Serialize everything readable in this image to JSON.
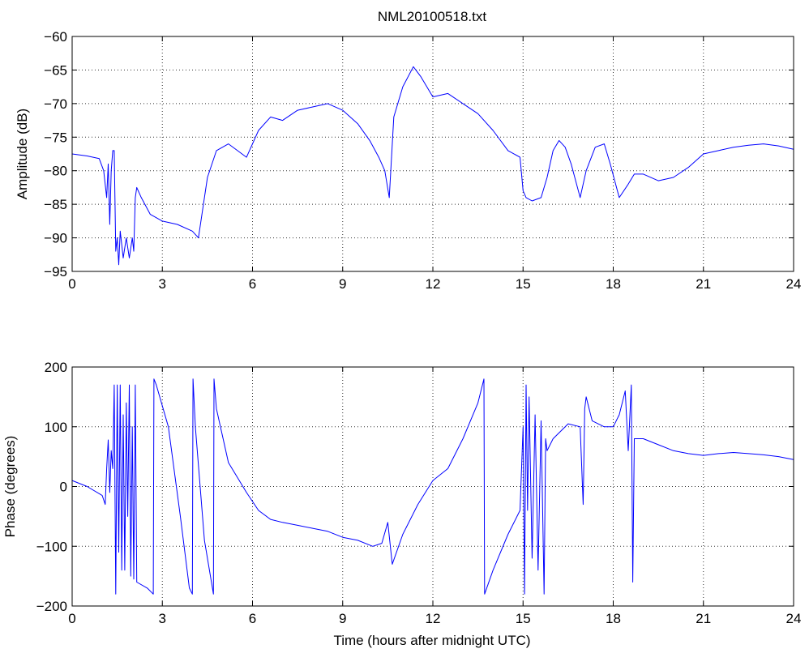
{
  "chart_data": [
    {
      "type": "line",
      "title": "NML20100518.txt",
      "xlabel": "",
      "ylabel": "Amplitude (dB)",
      "xlim": [
        0,
        24
      ],
      "ylim": [
        -95,
        -60
      ],
      "xticks": [
        0,
        3,
        6,
        9,
        12,
        15,
        18,
        21,
        24
      ],
      "yticks": [
        -95,
        -90,
        -85,
        -80,
        -75,
        -70,
        -65,
        -60
      ],
      "grid": true,
      "color": "#0000ff",
      "series": [
        {
          "x": [
            0,
            0.5,
            0.9,
            1.05,
            1.15,
            1.2,
            1.25,
            1.3,
            1.35,
            1.4,
            1.45,
            1.5,
            1.55,
            1.6,
            1.7,
            1.8,
            1.9,
            2.0,
            2.05,
            2.1,
            2.15,
            2.3,
            2.6,
            3.0,
            3.5,
            4.0,
            4.2,
            4.3,
            4.5,
            4.8,
            5.2,
            5.5,
            5.8,
            6.2,
            6.6,
            7.0,
            7.5,
            8.0,
            8.5,
            9.0,
            9.5,
            9.9,
            10.2,
            10.4,
            10.55,
            10.7,
            11.0,
            11.35,
            11.6,
            12.0,
            12.5,
            13.0,
            13.5,
            14.0,
            14.5,
            14.9,
            15.0,
            15.1,
            15.3,
            15.6,
            15.8,
            16.0,
            16.2,
            16.4,
            16.6,
            16.9,
            17.1,
            17.4,
            17.7,
            17.9,
            18.2,
            18.5,
            18.7,
            19.0,
            19.5,
            20.0,
            20.5,
            21.0,
            21.5,
            22.0,
            22.5,
            23.0,
            23.5,
            24.0
          ],
          "y": [
            -77.5,
            -77.8,
            -78.2,
            -80,
            -84,
            -79,
            -88,
            -80,
            -77,
            -77,
            -92,
            -90,
            -94,
            -89,
            -93,
            -90,
            -93,
            -90,
            -92,
            -84,
            -82.5,
            -84,
            -86.5,
            -87.5,
            -88,
            -89,
            -90,
            -87,
            -81,
            -77,
            -76,
            -77,
            -78,
            -74,
            -72,
            -72.5,
            -71,
            -70.5,
            -70,
            -71,
            -73,
            -75.5,
            -78,
            -80,
            -84,
            -72,
            -67.5,
            -64.5,
            -66,
            -69,
            -68.5,
            -70,
            -71.5,
            -74,
            -77,
            -78,
            -83,
            -84,
            -84.5,
            -84,
            -81,
            -77,
            -75.5,
            -76.5,
            -79,
            -84,
            -80,
            -76.5,
            -76,
            -79,
            -84,
            -82,
            -80.5,
            -80.5,
            -81.5,
            -81,
            -79.5,
            -77.5,
            -77,
            -76.5,
            -76.2,
            -76,
            -76.3,
            -76.8
          ]
        }
      ]
    },
    {
      "type": "line",
      "title": "",
      "xlabel": "Time (hours after midnight UTC)",
      "ylabel": "Phase (degrees)",
      "xlim": [
        0,
        24
      ],
      "ylim": [
        -200,
        200
      ],
      "xticks": [
        0,
        3,
        6,
        9,
        12,
        15,
        18,
        21,
        24
      ],
      "yticks": [
        -200,
        -100,
        0,
        100,
        200
      ],
      "grid": true,
      "color": "#0000ff",
      "series": [
        {
          "x": [
            0,
            0.5,
            1.0,
            1.1,
            1.15,
            1.2,
            1.25,
            1.3,
            1.35,
            1.4,
            1.45,
            1.5,
            1.55,
            1.6,
            1.65,
            1.7,
            1.75,
            1.8,
            1.85,
            1.9,
            1.95,
            2.0,
            2.05,
            2.1,
            2.15,
            2.5,
            2.7,
            2.72,
            2.8,
            3.2,
            3.6,
            3.9,
            4.0,
            4.02,
            4.1,
            4.4,
            4.7,
            4.72,
            4.8,
            5.2,
            5.8,
            6.2,
            6.6,
            7.0,
            7.5,
            8.0,
            8.5,
            9.0,
            9.5,
            10.0,
            10.3,
            10.5,
            10.65,
            11.0,
            11.5,
            12.0,
            12.5,
            13.0,
            13.5,
            13.7,
            13.72,
            14.0,
            14.5,
            14.9,
            15.0,
            15.05,
            15.1,
            15.15,
            15.2,
            15.3,
            15.4,
            15.5,
            15.6,
            15.7,
            15.75,
            15.8,
            16.0,
            16.5,
            16.9,
            17.0,
            17.05,
            17.1,
            17.3,
            17.7,
            18.0,
            18.2,
            18.4,
            18.5,
            18.6,
            18.65,
            18.7,
            19.0,
            19.5,
            20.0,
            20.5,
            21.0,
            21.5,
            22.0,
            22.5,
            23.0,
            23.5,
            24.0
          ],
          "y": [
            10,
            0,
            -15,
            -30,
            30,
            78,
            -10,
            60,
            30,
            170,
            -180,
            170,
            -110,
            170,
            -140,
            120,
            -140,
            140,
            -50,
            170,
            -150,
            100,
            -155,
            170,
            -160,
            -170,
            -180,
            180,
            170,
            100,
            -50,
            -170,
            -180,
            180,
            100,
            -90,
            -180,
            180,
            130,
            40,
            -10,
            -40,
            -55,
            -60,
            -65,
            -70,
            -75,
            -85,
            -90,
            -100,
            -95,
            -60,
            -130,
            -80,
            -30,
            10,
            30,
            80,
            140,
            180,
            -180,
            -140,
            -80,
            -40,
            100,
            -180,
            170,
            -40,
            150,
            -120,
            120,
            -140,
            110,
            -180,
            80,
            60,
            80,
            105,
            100,
            -30,
            130,
            150,
            110,
            100,
            100,
            120,
            160,
            60,
            170,
            -160,
            80,
            80,
            70,
            60,
            55,
            52,
            55,
            57,
            55,
            53,
            50,
            45
          ]
        }
      ]
    }
  ]
}
